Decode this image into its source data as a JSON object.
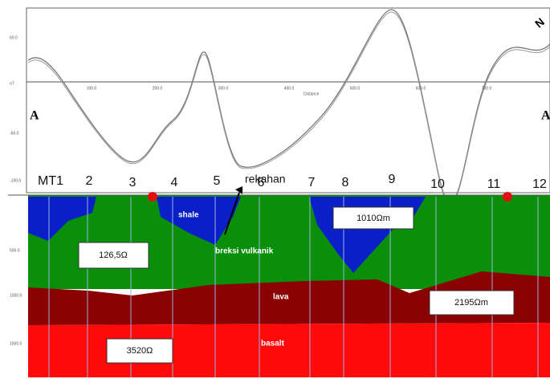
{
  "profile": {
    "left_label": "A",
    "right_label": "A",
    "north": "N",
    "x_ticks": [
      "100.0",
      "200.0",
      "300.0",
      "400.0",
      "500.0",
      "600.0",
      "700.0"
    ],
    "x_axis_label": "Distance",
    "y_ticks": [
      "60.0",
      "nT",
      "-60.0",
      "-100.0"
    ]
  },
  "section": {
    "depth_ticks": [
      "500.0",
      "1000.0",
      "1500.0"
    ],
    "stations": [
      "MT1",
      "2",
      "3",
      "4",
      "5",
      "6",
      "7",
      "8",
      "9",
      "10",
      "11",
      "12"
    ],
    "fault": "rekahan",
    "layers": [
      "shale",
      "breksi vulkanik",
      "lava",
      "basalt"
    ],
    "resistivity": [
      "126,5Ω",
      "1010Ωm",
      "2195Ωm",
      "3520Ω"
    ]
  }
}
